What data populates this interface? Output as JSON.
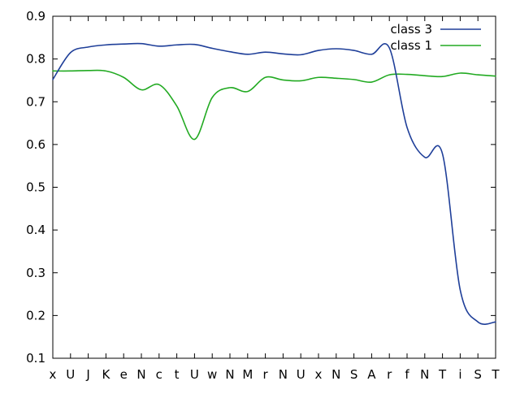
{
  "chart_data": {
    "type": "line",
    "categories": [
      "x",
      "U",
      "J",
      "K",
      "e",
      "N",
      "c",
      "t",
      "U",
      "w",
      "N",
      "M",
      "r",
      "N",
      "U",
      "x",
      "N",
      "S",
      "A",
      "r",
      "f",
      "N",
      "T",
      "i",
      "S",
      "T"
    ],
    "ylim": [
      0.1,
      0.9
    ],
    "yticks": [
      0.1,
      0.2,
      0.3,
      0.4,
      0.5,
      0.6,
      0.7,
      0.8,
      0.9
    ],
    "ytick_labels": [
      "0.1",
      "0.2",
      "0.3",
      "0.4",
      "0.5",
      "0.6",
      "0.7",
      "0.8",
      "0.9"
    ],
    "legend_position": "top-right",
    "grid": false,
    "series": [
      {
        "name": "class 3",
        "color": "#1f3f99",
        "values": [
          0.752,
          0.815,
          0.828,
          0.833,
          0.835,
          0.836,
          0.83,
          0.833,
          0.834,
          0.825,
          0.817,
          0.811,
          0.816,
          0.812,
          0.81,
          0.82,
          0.824,
          0.82,
          0.811,
          0.826,
          0.64,
          0.57,
          0.578,
          0.26,
          0.185,
          0.185
        ]
      },
      {
        "name": "class 1",
        "color": "#22aa22",
        "values": [
          0.772,
          0.772,
          0.773,
          0.772,
          0.757,
          0.728,
          0.74,
          0.69,
          0.612,
          0.71,
          0.733,
          0.724,
          0.757,
          0.751,
          0.749,
          0.757,
          0.755,
          0.752,
          0.746,
          0.763,
          0.764,
          0.761,
          0.759,
          0.767,
          0.763,
          0.76
        ]
      }
    ]
  }
}
